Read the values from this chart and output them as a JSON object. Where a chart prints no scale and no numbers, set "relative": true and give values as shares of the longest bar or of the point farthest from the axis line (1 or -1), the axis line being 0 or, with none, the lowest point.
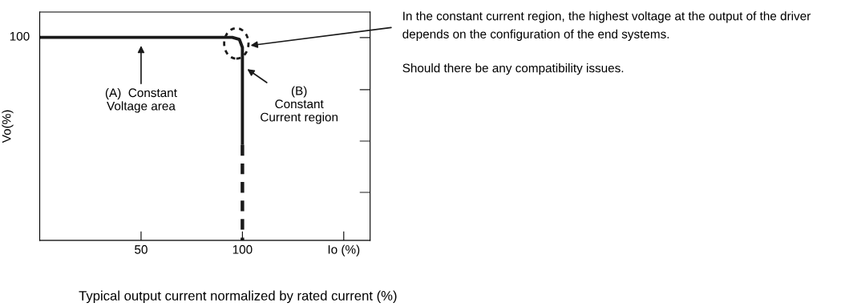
{
  "chart_data": {
    "type": "line",
    "xlabel": "Typical output current normalized by rated current (%)",
    "ylabel": "Vo(%)",
    "xlim": [
      0,
      163
    ],
    "xticks": [
      50,
      100,
      {
        "value": 150,
        "label": "Io (%)"
      }
    ],
    "relative": true,
    "grid": false,
    "marker": "none",
    "series": [
      {
        "color": "#1a1a1a",
        "line_style": "solid",
        "x": [
          0,
          95,
          98.5,
          100,
          100
        ],
        "values": [
          1,
          1,
          0.99,
          0.95,
          0.47
        ]
      },
      {
        "color": "#1a1a1a",
        "line_style": "dashed",
        "x": [
          100,
          100
        ],
        "values": [
          0.47,
          0
        ]
      }
    ],
    "annotations": [
      "100",
      "(A)  Constant\nVoltage area",
      "(B)\nConstant\nCurrent region",
      "In the constant current region, the highest voltage at the output of the driver\ndepends on the configuration of the end systems.",
      "Should there be any compatibility issues."
    ]
  }
}
